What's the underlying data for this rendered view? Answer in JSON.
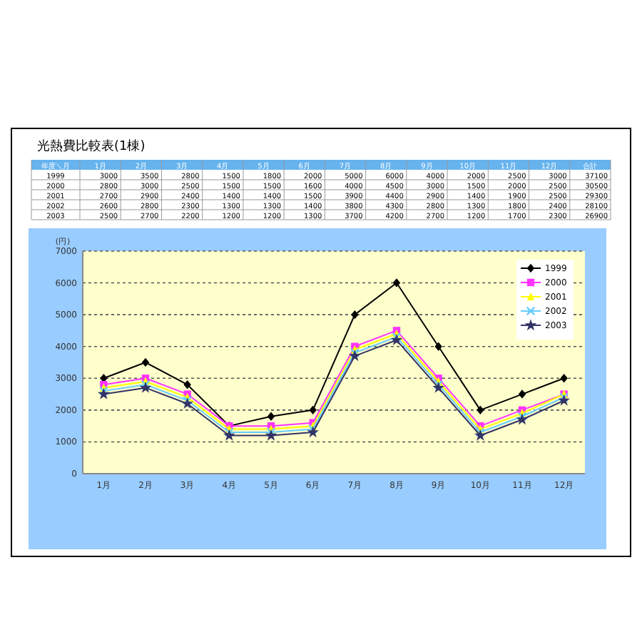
{
  "chart_data": {
    "type": "line",
    "title": "光熱費比較表(1棟)",
    "ylabel": "(円)",
    "categories": [
      "1月",
      "2月",
      "3月",
      "4月",
      "5月",
      "6月",
      "7月",
      "8月",
      "9月",
      "10月",
      "11月",
      "12月"
    ],
    "series": [
      {
        "name": "1999",
        "color": "#000000",
        "marker": "diamond",
        "values": [
          3000,
          3500,
          2800,
          1500,
          1800,
          2000,
          5000,
          6000,
          4000,
          2000,
          2500,
          3000
        ]
      },
      {
        "name": "2000",
        "color": "#ff33ff",
        "marker": "square",
        "values": [
          2800,
          3000,
          2500,
          1500,
          1500,
          1600,
          4000,
          4500,
          3000,
          1500,
          2000,
          2500
        ]
      },
      {
        "name": "2001",
        "color": "#ffff00",
        "marker": "triangle",
        "values": [
          2700,
          2900,
          2400,
          1400,
          1400,
          1500,
          3900,
          4400,
          2900,
          1400,
          1900,
          2500
        ]
      },
      {
        "name": "2002",
        "color": "#66ccff",
        "marker": "cross",
        "values": [
          2600,
          2800,
          2300,
          1300,
          1300,
          1400,
          3800,
          4300,
          2800,
          1300,
          1800,
          2400
        ]
      },
      {
        "name": "2003",
        "color": "#333366",
        "marker": "star",
        "values": [
          2500,
          2700,
          2200,
          1200,
          1200,
          1300,
          3700,
          4200,
          2700,
          1200,
          1700,
          2300
        ]
      }
    ],
    "totals": [
      "37100",
      "30500",
      "29300",
      "28100",
      "26900"
    ],
    "annotations": [
      "年度＼月",
      "合計"
    ],
    "data_labels": true,
    "ylim": [
      0,
      7000
    ],
    "yticks": [
      0,
      1000,
      2000,
      3000,
      4000,
      5000,
      6000,
      7000
    ],
    "grid": "y",
    "line_style": "solid",
    "legend": "top right"
  }
}
